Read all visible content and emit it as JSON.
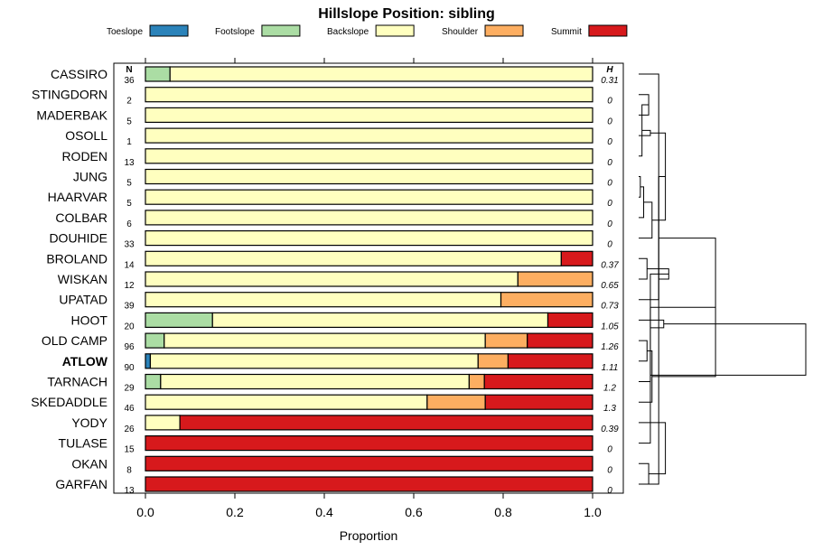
{
  "chart_data": {
    "type": "bar",
    "subtype": "stacked-horizontal-proportion",
    "title": "Hillslope Position: sibling",
    "xlabel": "Proportion",
    "ylabel": "",
    "xlim": [
      0,
      1
    ],
    "x_ticks": [
      "0.0",
      "0.2",
      "0.4",
      "0.6",
      "0.8",
      "1.0"
    ],
    "n_header": "N",
    "h_header": "H",
    "highlight": "ATLOW",
    "legend": [
      {
        "name": "Toeslope",
        "color": "#2b83ba"
      },
      {
        "name": "Footslope",
        "color": "#abdda4"
      },
      {
        "name": "Backslope",
        "color": "#ffffbf"
      },
      {
        "name": "Shoulder",
        "color": "#fdae61"
      },
      {
        "name": "Summit",
        "color": "#d7191c"
      }
    ],
    "rows": [
      {
        "label": "CASSIRO",
        "n": "36",
        "h": "0.31",
        "values": [
          0,
          0.055,
          0.945,
          0,
          0
        ]
      },
      {
        "label": "STINGDORN",
        "n": "2",
        "h": "0",
        "values": [
          0,
          0,
          1,
          0,
          0
        ]
      },
      {
        "label": "MADERBAK",
        "n": "5",
        "h": "0",
        "values": [
          0,
          0,
          1,
          0,
          0
        ]
      },
      {
        "label": "OSOLL",
        "n": "1",
        "h": "0",
        "values": [
          0,
          0,
          1,
          0,
          0
        ]
      },
      {
        "label": "RODEN",
        "n": "13",
        "h": "0",
        "values": [
          0,
          0,
          1,
          0,
          0
        ]
      },
      {
        "label": "JUNG",
        "n": "5",
        "h": "0",
        "values": [
          0,
          0,
          1,
          0,
          0
        ]
      },
      {
        "label": "HAARVAR",
        "n": "5",
        "h": "0",
        "values": [
          0,
          0,
          1,
          0,
          0
        ]
      },
      {
        "label": "COLBAR",
        "n": "6",
        "h": "0",
        "values": [
          0,
          0,
          1,
          0,
          0
        ]
      },
      {
        "label": "DOUHIDE",
        "n": "33",
        "h": "0",
        "values": [
          0,
          0,
          1,
          0,
          0
        ]
      },
      {
        "label": "BROLAND",
        "n": "14",
        "h": "0.37",
        "values": [
          0,
          0,
          0.93,
          0,
          0.07
        ]
      },
      {
        "label": "WISKAN",
        "n": "12",
        "h": "0.65",
        "values": [
          0,
          0,
          0.833,
          0.167,
          0
        ]
      },
      {
        "label": "UPATAD",
        "n": "39",
        "h": "0.73",
        "values": [
          0,
          0,
          0.795,
          0.205,
          0
        ]
      },
      {
        "label": "HOOT",
        "n": "20",
        "h": "1.05",
        "values": [
          0,
          0.15,
          0.75,
          0,
          0.1
        ]
      },
      {
        "label": "OLD CAMP",
        "n": "96",
        "h": "1.26",
        "values": [
          0,
          0.042,
          0.718,
          0.094,
          0.146
        ]
      },
      {
        "label": "ATLOW",
        "n": "90",
        "h": "1.11",
        "values": [
          0.011,
          0,
          0.733,
          0.067,
          0.189
        ]
      },
      {
        "label": "TARNACH",
        "n": "29",
        "h": "1.2",
        "values": [
          0,
          0.034,
          0.69,
          0.034,
          0.242
        ]
      },
      {
        "label": "SKEDADDLE",
        "n": "46",
        "h": "1.3",
        "values": [
          0,
          0,
          0.63,
          0.13,
          0.24
        ]
      },
      {
        "label": "YODY",
        "n": "26",
        "h": "0.39",
        "values": [
          0,
          0,
          0.077,
          0,
          0.923
        ]
      },
      {
        "label": "TULASE",
        "n": "15",
        "h": "0",
        "values": [
          0,
          0,
          0,
          0,
          1
        ]
      },
      {
        "label": "OKAN",
        "n": "8",
        "h": "0",
        "values": [
          0,
          0,
          0,
          0,
          1
        ]
      },
      {
        "label": "GARFAN",
        "n": "13",
        "h": "0",
        "values": [
          0,
          0,
          0,
          0,
          1
        ]
      }
    ],
    "dendrogram": {
      "merges": [
        [
          1,
          2,
          0.06
        ],
        [
          5,
          6,
          0.01
        ],
        [
          4,
          21,
          0.02
        ],
        [
          22,
          7,
          0.03
        ],
        [
          3,
          23,
          0.07
        ],
        [
          24,
          8,
          0.08
        ],
        [
          0,
          20,
          0.12
        ],
        [
          26,
          25,
          0.16
        ],
        [
          9,
          10,
          0.05
        ],
        [
          28,
          11,
          0.12
        ],
        [
          27,
          29,
          0.18
        ],
        [
          13,
          14,
          0.05
        ],
        [
          31,
          15,
          0.07
        ],
        [
          32,
          16,
          0.08
        ],
        [
          12,
          33,
          0.15
        ],
        [
          30,
          34,
          0.46
        ],
        [
          19,
          20,
          0.06
        ],
        [
          18,
          36,
          0.07
        ],
        [
          17,
          37,
          0.16
        ],
        [
          35,
          38,
          1.0
        ]
      ]
    }
  }
}
